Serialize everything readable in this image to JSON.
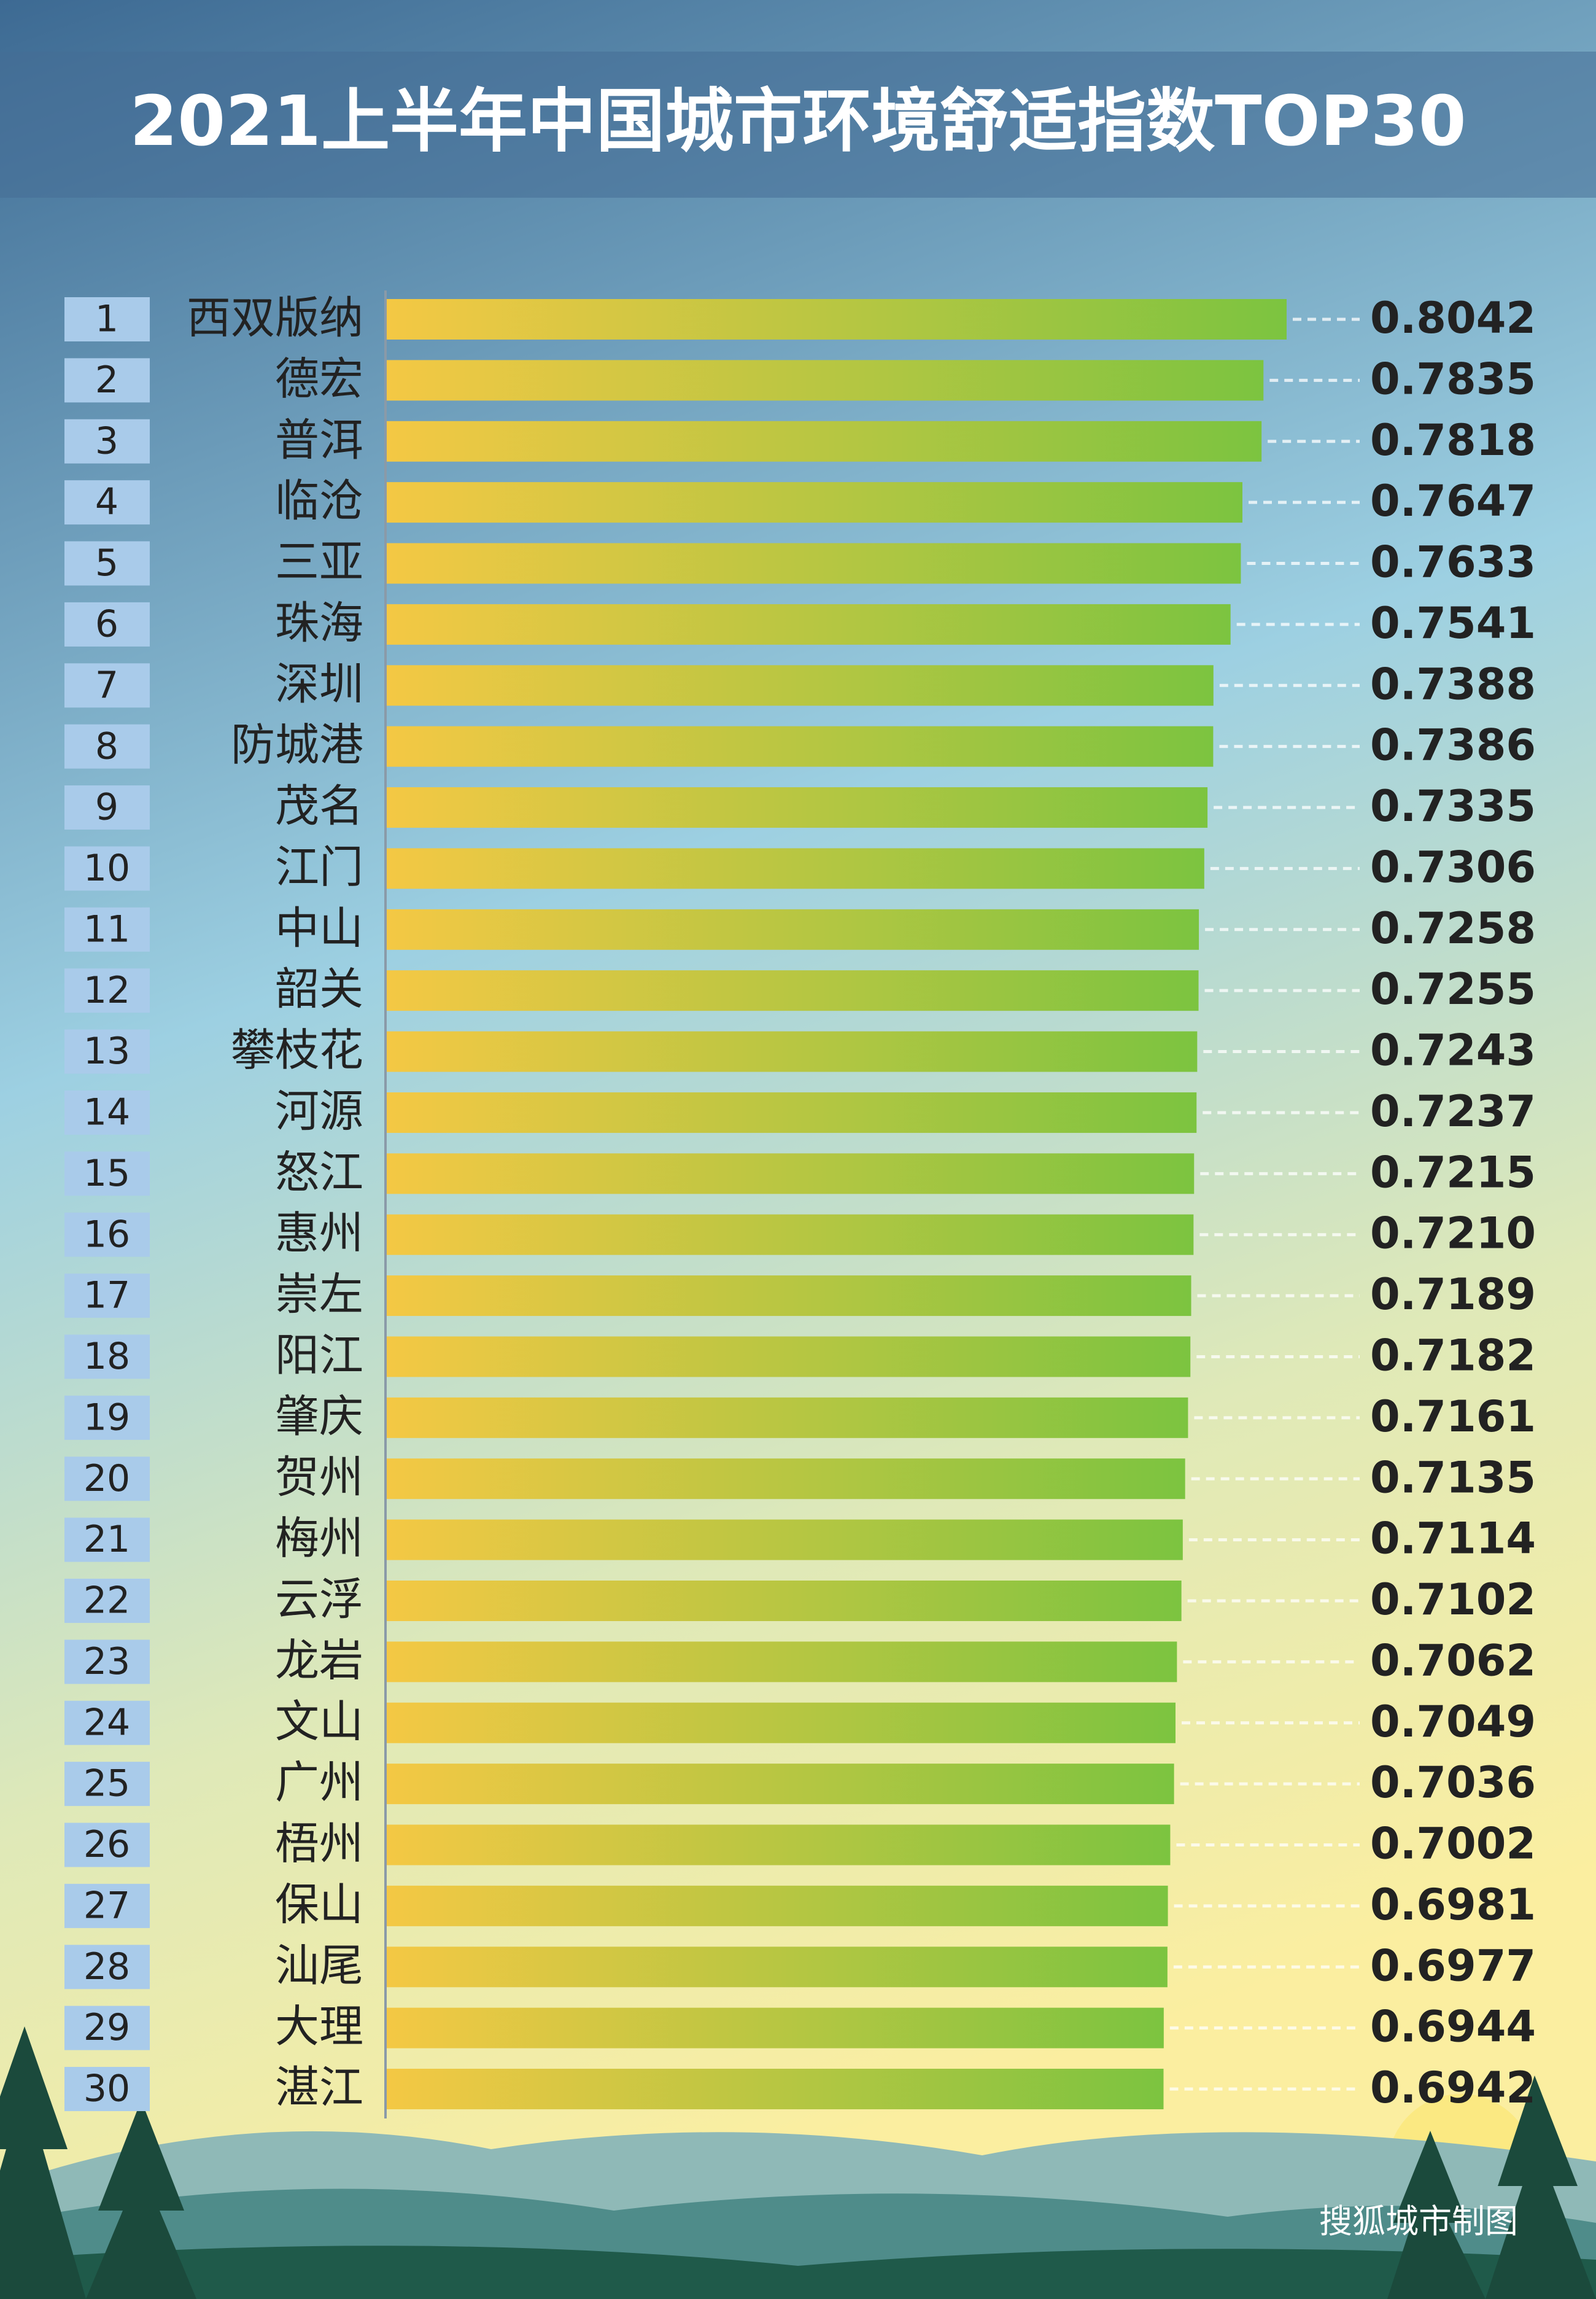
{
  "chart_data": {
    "type": "hbar",
    "title": "2021上半年中国城市环境舒适指数TOP30",
    "source": "搜狐城市制图",
    "ranks": [
      1,
      2,
      3,
      4,
      5,
      6,
      7,
      8,
      9,
      10,
      11,
      12,
      13,
      14,
      15,
      16,
      17,
      18,
      19,
      20,
      21,
      22,
      23,
      24,
      25,
      26,
      27,
      28,
      29,
      30
    ],
    "categories": [
      "西双版纳",
      "德宏",
      "普洱",
      "临沧",
      "三亚",
      "珠海",
      "深圳",
      "防城港",
      "茂名",
      "江门",
      "中山",
      "韶关",
      "攀枝花",
      "河源",
      "怒江",
      "惠州",
      "崇左",
      "阳江",
      "肇庆",
      "贺州",
      "梅州",
      "云浮",
      "龙岩",
      "文山",
      "广州",
      "梧州",
      "保山",
      "汕尾",
      "大理",
      "湛江"
    ],
    "values": [
      0.8042,
      0.7835,
      0.7818,
      0.7647,
      0.7633,
      0.7541,
      0.7388,
      0.7386,
      0.7335,
      0.7306,
      0.7258,
      0.7255,
      0.7243,
      0.7237,
      0.7215,
      0.721,
      0.7189,
      0.7182,
      0.7161,
      0.7135,
      0.7114,
      0.7102,
      0.7062,
      0.7049,
      0.7036,
      0.7002,
      0.6981,
      0.6977,
      0.6944,
      0.6942
    ],
    "value_labels": [
      "0.8042",
      "0.7835",
      "0.7818",
      "0.7647",
      "0.7633",
      "0.7541",
      "0.7388",
      "0.7386",
      "0.7335",
      "0.7306",
      "0.7258",
      "0.7255",
      "0.7243",
      "0.7237",
      "0.7215",
      "0.7210",
      "0.7189",
      "0.7182",
      "0.7161",
      "0.7135",
      "0.7114",
      "0.7102",
      "0.7062",
      "0.7049",
      "0.7036",
      "0.7002",
      "0.6981",
      "0.6977",
      "0.6944",
      "0.6942"
    ],
    "colors": [
      "#f4c844",
      "#7cc440"
    ]
  }
}
